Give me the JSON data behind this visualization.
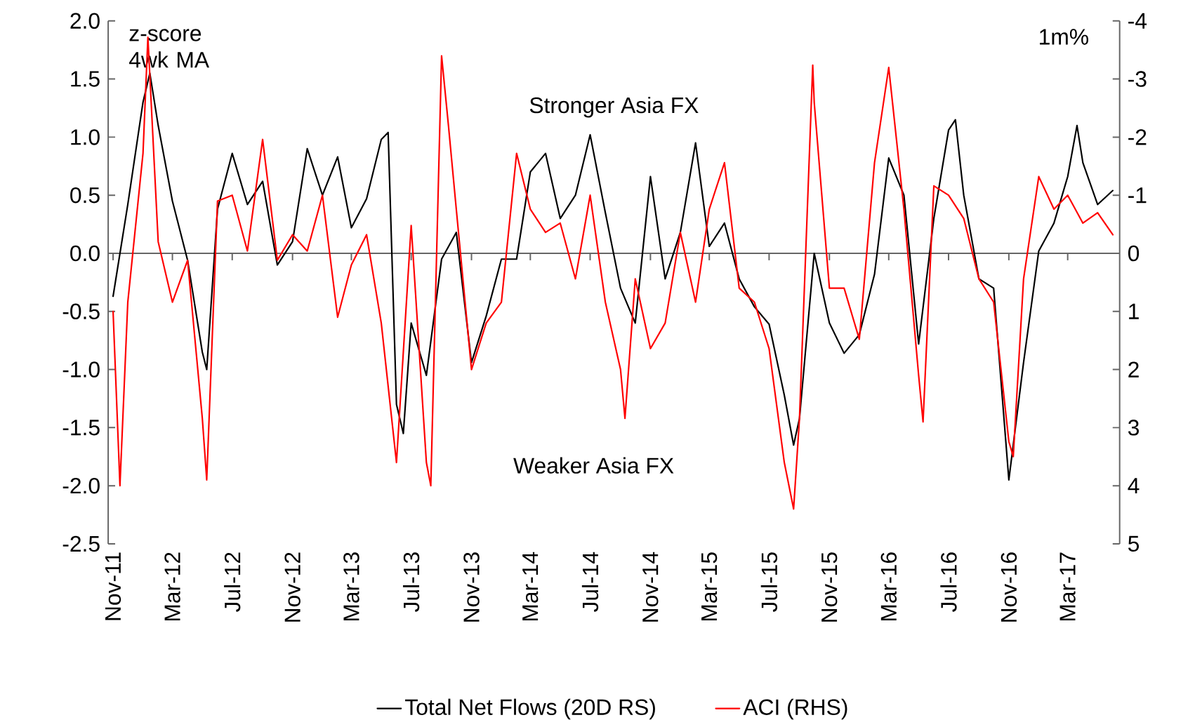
{
  "chart_data": {
    "type": "line",
    "ylabel": "z-score 4wk MA",
    "y2label": "1m%",
    "annotations": [
      "Stronger Asia FX",
      "Weaker Asia FX"
    ],
    "xlim": [
      "2011-10-22",
      "2017-06-15"
    ],
    "xticks": [
      {
        "value": "2011-11-01",
        "label": "Nov-11"
      },
      {
        "value": "2012-03-01",
        "label": "Mar-12"
      },
      {
        "value": "2012-07-01",
        "label": "Jul-12"
      },
      {
        "value": "2012-11-01",
        "label": "Nov-12"
      },
      {
        "value": "2013-03-01",
        "label": "Mar-13"
      },
      {
        "value": "2013-07-01",
        "label": "Jul-13"
      },
      {
        "value": "2013-11-01",
        "label": "Nov-13"
      },
      {
        "value": "2014-03-01",
        "label": "Mar-14"
      },
      {
        "value": "2014-07-01",
        "label": "Jul-14"
      },
      {
        "value": "2014-11-01",
        "label": "Nov-14"
      },
      {
        "value": "2015-03-01",
        "label": "Mar-15"
      },
      {
        "value": "2015-07-01",
        "label": "Jul-15"
      },
      {
        "value": "2015-11-01",
        "label": "Nov-15"
      },
      {
        "value": "2016-03-01",
        "label": "Mar-16"
      },
      {
        "value": "2016-07-01",
        "label": "Jul-16"
      },
      {
        "value": "2016-11-01",
        "label": "Nov-16"
      },
      {
        "value": "2017-03-01",
        "label": "Mar-17"
      }
    ],
    "ylim": [
      -2.5,
      2.0
    ],
    "yticks": [
      {
        "value": -2.5,
        "label": "-2.5"
      },
      {
        "value": -2,
        "label": "-2.0"
      },
      -1.5,
      {
        "value": -1,
        "label": "-1.0"
      },
      -0.5,
      {
        "value": 0,
        "label": "0.0"
      },
      0.5,
      {
        "value": 1,
        "label": "1.0"
      },
      1.5,
      {
        "value": 2,
        "label": "2.0"
      }
    ],
    "y2lim": [
      5,
      -4
    ],
    "y2ticks": [
      -4,
      -3,
      -2,
      -1,
      0,
      1,
      2,
      3,
      4,
      5
    ],
    "legend": "bottom",
    "marker": "none",
    "line_style": "solid",
    "series": [
      {
        "name": "Total Net Flows (20D RS)",
        "color": "#000000",
        "x": [
          "2011-11-01",
          "2011-12-01",
          "2012-01-01",
          "2012-01-15",
          "2012-02-01",
          "2012-03-01",
          "2012-04-01",
          "2012-05-01",
          "2012-05-10",
          "2012-06-01",
          "2012-07-01",
          "2012-08-01",
          "2012-09-01",
          "2012-10-01",
          "2012-11-01",
          "2012-12-01",
          "2013-01-01",
          "2013-02-01",
          "2013-03-01",
          "2013-04-01",
          "2013-05-01",
          "2013-05-15",
          "2013-06-01",
          "2013-06-15",
          "2013-07-01",
          "2013-08-01",
          "2013-09-01",
          "2013-10-01",
          "2013-11-01",
          "2013-12-01",
          "2014-01-01",
          "2014-02-01",
          "2014-03-01",
          "2014-04-01",
          "2014-05-01",
          "2014-06-01",
          "2014-07-01",
          "2014-08-01",
          "2014-09-01",
          "2014-10-01",
          "2014-11-01",
          "2014-12-01",
          "2015-01-01",
          "2015-02-01",
          "2015-03-01",
          "2015-04-01",
          "2015-05-01",
          "2015-06-01",
          "2015-07-01",
          "2015-08-01",
          "2015-08-20",
          "2015-09-01",
          "2015-10-01",
          "2015-11-01",
          "2015-12-01",
          "2016-01-01",
          "2016-02-01",
          "2016-03-01",
          "2016-04-01",
          "2016-05-01",
          "2016-06-01",
          "2016-07-01",
          "2016-07-15",
          "2016-08-01",
          "2016-09-01",
          "2016-10-01",
          "2016-11-01",
          "2016-12-01",
          "2017-01-01",
          "2017-02-01",
          "2017-03-01",
          "2017-03-20",
          "2017-04-01",
          "2017-05-01",
          "2017-06-01"
        ],
        "values": [
          -0.37,
          0.42,
          1.3,
          1.55,
          1.1,
          0.45,
          -0.06,
          -0.85,
          -1.0,
          0.38,
          0.86,
          0.42,
          0.62,
          -0.1,
          0.1,
          0.9,
          0.5,
          0.83,
          0.22,
          0.47,
          0.98,
          1.04,
          -1.3,
          -1.55,
          -0.6,
          -1.05,
          -0.05,
          0.18,
          -0.94,
          -0.54,
          -0.05,
          -0.05,
          0.7,
          0.86,
          0.3,
          0.5,
          1.02,
          0.35,
          -0.3,
          -0.6,
          0.66,
          -0.22,
          0.18,
          0.95,
          0.06,
          0.26,
          -0.22,
          -0.46,
          -0.61,
          -1.22,
          -1.65,
          -1.42,
          0.0,
          -0.6,
          -0.86,
          -0.7,
          -0.18,
          0.82,
          0.5,
          -0.78,
          0.3,
          1.06,
          1.15,
          0.5,
          -0.22,
          -0.3,
          -1.95,
          -0.94,
          0.02,
          0.26,
          0.66,
          1.1,
          0.78,
          0.42,
          0.54
        ]
      },
      {
        "name": "ACI (RHS)",
        "color": "#ff0000",
        "axis": "y2",
        "x": [
          "2011-11-01",
          "2011-11-15",
          "2011-12-01",
          "2012-01-01",
          "2012-01-11",
          "2012-02-01",
          "2012-03-01",
          "2012-04-01",
          "2012-05-01",
          "2012-05-10",
          "2012-06-01",
          "2012-07-01",
          "2012-08-01",
          "2012-09-01",
          "2012-10-01",
          "2012-11-01",
          "2012-12-01",
          "2013-01-01",
          "2013-02-01",
          "2013-03-01",
          "2013-04-01",
          "2013-05-01",
          "2013-06-01",
          "2013-07-01",
          "2013-08-01",
          "2013-08-10",
          "2013-09-01",
          "2013-09-15",
          "2013-10-01",
          "2013-11-01",
          "2013-12-01",
          "2014-01-01",
          "2014-02-01",
          "2014-03-01",
          "2014-04-01",
          "2014-05-01",
          "2014-06-01",
          "2014-07-01",
          "2014-08-01",
          "2014-09-01",
          "2014-09-10",
          "2014-10-01",
          "2014-11-01",
          "2014-12-01",
          "2015-01-01",
          "2015-02-01",
          "2015-03-01",
          "2015-04-01",
          "2015-05-01",
          "2015-06-01",
          "2015-07-01",
          "2015-08-01",
          "2015-08-20",
          "2015-09-01",
          "2015-09-28",
          "2015-10-01",
          "2015-11-01",
          "2015-12-01",
          "2016-01-01",
          "2016-02-01",
          "2016-03-01",
          "2016-04-01",
          "2016-05-01",
          "2016-05-10",
          "2016-06-01",
          "2016-07-01",
          "2016-08-01",
          "2016-09-01",
          "2016-10-01",
          "2016-11-01",
          "2016-11-10",
          "2016-12-01",
          "2017-01-01",
          "2017-02-01",
          "2017-03-01",
          "2017-04-01",
          "2017-05-01",
          "2017-06-01"
        ],
        "values": [
          1.0,
          4.0,
          0.84,
          -1.72,
          -3.72,
          -0.2,
          0.84,
          0.12,
          2.84,
          3.9,
          -0.9,
          -1.0,
          -0.04,
          -1.96,
          0.12,
          -0.32,
          -0.04,
          -1.0,
          1.1,
          0.2,
          -0.32,
          1.2,
          3.6,
          -0.48,
          3.6,
          4.0,
          -3.4,
          -2.2,
          -0.76,
          2.0,
          1.2,
          0.84,
          -1.72,
          -0.76,
          -0.36,
          -0.52,
          0.44,
          -1.0,
          0.84,
          2.0,
          2.84,
          0.44,
          1.64,
          1.2,
          -0.36,
          0.84,
          -0.76,
          -1.56,
          0.6,
          0.84,
          1.64,
          3.6,
          4.4,
          2.84,
          -3.24,
          -2.6,
          0.6,
          0.6,
          1.48,
          -1.56,
          -3.2,
          -0.76,
          2.1,
          2.9,
          -1.16,
          -1.0,
          -0.6,
          0.44,
          0.84,
          3.24,
          3.5,
          0.44,
          -1.32,
          -0.76,
          -1.0,
          -0.52,
          -0.7,
          -0.32
        ]
      }
    ]
  }
}
